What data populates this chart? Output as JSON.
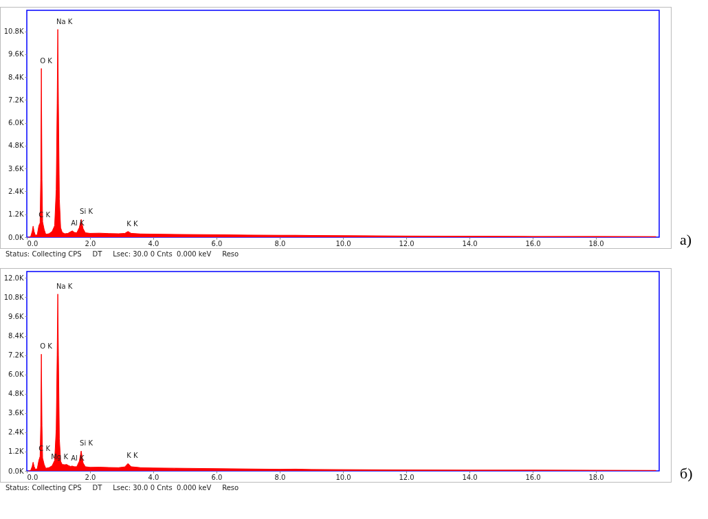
{
  "chart_data": [
    {
      "type": "area",
      "x": [
        0.05,
        0.12,
        0.17,
        0.2,
        0.23,
        0.27,
        0.33,
        0.38,
        0.42,
        0.44,
        0.46,
        0.48,
        0.5,
        0.55,
        0.6,
        0.7,
        0.8,
        0.88,
        0.93,
        0.96,
        0.98,
        1.0,
        1.03,
        1.07,
        1.12,
        1.2,
        1.3,
        1.38,
        1.44,
        1.5,
        1.58,
        1.66,
        1.72,
        1.78,
        1.85,
        2.0,
        2.3,
        2.6,
        2.9,
        3.1,
        3.2,
        3.3,
        3.6,
        4.0,
        5.0,
        6.0,
        7.0,
        8.0,
        8.5,
        9.0,
        10.0,
        12.0,
        14.0,
        16.0,
        18.0,
        19.9
      ],
      "series": [
        {
          "color": "#ff0000",
          "values": [
            0,
            20,
            300,
            580,
            300,
            100,
            120,
            600,
            750,
            3000,
            8850,
            3000,
            800,
            400,
            150,
            180,
            300,
            600,
            2500,
            7000,
            10900,
            7000,
            2000,
            500,
            250,
            180,
            200,
            280,
            330,
            250,
            230,
            500,
            930,
            450,
            230,
            200,
            210,
            190,
            180,
            200,
            300,
            200,
            170,
            160,
            140,
            130,
            110,
            100,
            100,
            90,
            80,
            60,
            50,
            40,
            40,
            30
          ]
        }
      ],
      "xlim": [
        0,
        20
      ],
      "xticks": [
        {
          "value": 0,
          "label": "0.0"
        },
        {
          "value": 2,
          "label": "2.0"
        },
        {
          "value": 4,
          "label": "4.0"
        },
        {
          "value": 6,
          "label": "6.0"
        },
        {
          "value": 8,
          "label": "8.0"
        },
        {
          "value": 10,
          "label": "10.0"
        },
        {
          "value": 12,
          "label": "12.0"
        },
        {
          "value": 14,
          "label": "14.0"
        },
        {
          "value": 16,
          "label": "16.0"
        },
        {
          "value": 18,
          "label": "18.0"
        }
      ],
      "ylim": [
        0,
        11900
      ],
      "yticks": [
        {
          "value": 0,
          "label": "0.0K"
        },
        {
          "value": 1200,
          "label": "1.2K"
        },
        {
          "value": 2400,
          "label": "2.4K"
        },
        {
          "value": 3600,
          "label": "3.6K"
        },
        {
          "value": 4800,
          "label": "4.8K"
        },
        {
          "value": 6000,
          "label": "6.0K"
        },
        {
          "value": 7200,
          "label": "7.2K"
        },
        {
          "value": 8400,
          "label": "8.4K"
        },
        {
          "value": 9600,
          "label": "9.6K"
        },
        {
          "value": 10800,
          "label": "10.8K"
        }
      ],
      "grid": false,
      "annotations": [
        {
          "text": "Na K",
          "x": 0.98,
          "y": 10900
        },
        {
          "text": "O  K",
          "x": 0.46,
          "y": 8850
        },
        {
          "text": "C  K",
          "x": 0.42,
          "y": 750
        },
        {
          "text": "Al K",
          "x": 1.44,
          "y": 330
        },
        {
          "text": "Si K",
          "x": 1.72,
          "y": 930
        },
        {
          "text": "K  K",
          "x": 3.2,
          "y": 300
        },
        "Status: Collecting CPS     DT     Lsec: 30.0 0 Cnts  0.000 keV     Reso",
        "а)"
      ]
    },
    {
      "type": "area",
      "x": [
        0.05,
        0.12,
        0.17,
        0.2,
        0.23,
        0.27,
        0.33,
        0.38,
        0.42,
        0.44,
        0.46,
        0.48,
        0.5,
        0.55,
        0.6,
        0.7,
        0.8,
        0.88,
        0.93,
        0.96,
        0.98,
        1.0,
        1.03,
        1.07,
        1.12,
        1.2,
        1.26,
        1.32,
        1.38,
        1.44,
        1.5,
        1.58,
        1.66,
        1.72,
        1.78,
        1.85,
        2.0,
        2.3,
        2.6,
        2.9,
        3.1,
        3.2,
        3.3,
        3.5,
        3.6,
        4.0,
        5.0,
        6.0,
        7.0,
        8.0,
        8.5,
        9.0,
        10.0,
        12.0,
        14.0,
        16.0,
        18.0,
        19.9
      ],
      "series": [
        {
          "color": "#ff0000",
          "values": [
            0,
            20,
            280,
            540,
            280,
            100,
            130,
            650,
            900,
            2800,
            7260,
            2800,
            800,
            400,
            160,
            200,
            320,
            650,
            2600,
            7200,
            11000,
            7200,
            2000,
            600,
            400,
            380,
            400,
            330,
            280,
            300,
            260,
            260,
            600,
            1240,
            500,
            260,
            220,
            230,
            210,
            200,
            250,
            460,
            260,
            220,
            200,
            180,
            160,
            140,
            120,
            100,
            110,
            90,
            80,
            60,
            50,
            50,
            40,
            30
          ]
        }
      ],
      "xlim": [
        0,
        20
      ],
      "xticks": [
        {
          "value": 0,
          "label": "0.0"
        },
        {
          "value": 2,
          "label": "2.0"
        },
        {
          "value": 4,
          "label": "4.0"
        },
        {
          "value": 6,
          "label": "6.0"
        },
        {
          "value": 8,
          "label": "8.0"
        },
        {
          "value": 10,
          "label": "10.0"
        },
        {
          "value": 12,
          "label": "12.0"
        },
        {
          "value": 14,
          "label": "14.0"
        },
        {
          "value": 16,
          "label": "16.0"
        },
        {
          "value": 18,
          "label": "18.0"
        }
      ],
      "ylim": [
        0,
        12400
      ],
      "yticks": [
        {
          "value": 0,
          "label": "0.0K"
        },
        {
          "value": 1200,
          "label": "1.2K"
        },
        {
          "value": 2400,
          "label": "2.4K"
        },
        {
          "value": 3600,
          "label": "3.6K"
        },
        {
          "value": 4800,
          "label": "4.8K"
        },
        {
          "value": 6000,
          "label": "6.0K"
        },
        {
          "value": 7200,
          "label": "7.2K"
        },
        {
          "value": 8400,
          "label": "8.4K"
        },
        {
          "value": 9600,
          "label": "9.6K"
        },
        {
          "value": 10800,
          "label": "10.8K"
        },
        {
          "value": 12000,
          "label": "12.0K"
        }
      ],
      "grid": false,
      "annotations": [
        {
          "text": "Na K",
          "x": 0.98,
          "y": 11000
        },
        {
          "text": "O  K",
          "x": 0.46,
          "y": 7260
        },
        {
          "text": "C  K",
          "x": 0.42,
          "y": 900
        },
        {
          "text": "Mg K",
          "x": 1.26,
          "y": 400
        },
        {
          "text": "Al K",
          "x": 1.44,
          "y": 300
        },
        {
          "text": "Si K",
          "x": 1.72,
          "y": 1240
        },
        {
          "text": "K  K",
          "x": 3.2,
          "y": 460
        },
        "Status: Collecting CPS     DT     Lsec: 30.0 0 Cnts  0.000 keV     Reso",
        "б)"
      ]
    }
  ]
}
